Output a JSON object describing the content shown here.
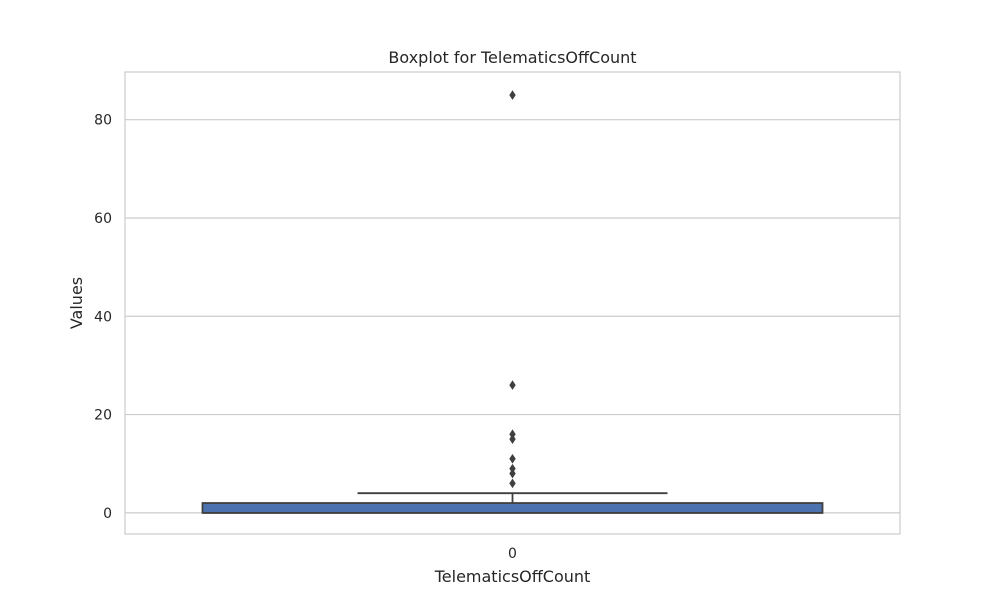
{
  "chart_data": {
    "type": "box",
    "title": "Boxplot for TelematicsOffCount",
    "xlabel": "TelematicsOffCount",
    "ylabel": "Values",
    "categories": [
      "0"
    ],
    "ylim": [
      -4.3,
      89.7
    ],
    "yticks": [
      0,
      20,
      40,
      60,
      80
    ],
    "grid": true,
    "box": {
      "min": 0,
      "q1": 0,
      "median": 0,
      "q3": 2,
      "max": 4
    },
    "outliers": [
      85,
      26,
      16,
      15,
      11,
      9,
      8,
      6
    ]
  },
  "colors": {
    "box_fill": "#4c72b0",
    "box_edge": "#3f3f3f",
    "whisker": "#3f3f3f",
    "outlier": "#3f3f3f",
    "grid": "#cccccc",
    "frame": "#cccccc"
  }
}
